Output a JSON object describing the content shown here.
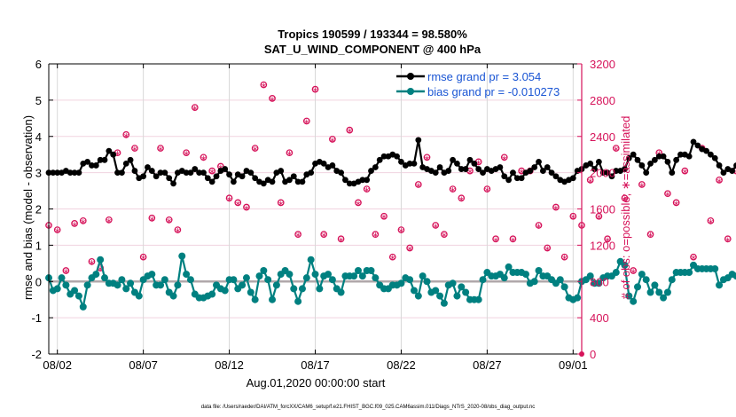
{
  "chart_data": {
    "type": "line",
    "title": "Tropics 190599 / 193344 = 98.580%",
    "subtitle": "SAT_U_WIND_COMPONENT @ 400 hPa",
    "xlabel": "Aug.01,2020 00:00:00 start",
    "ylabel": "rmse and bias (model - observation)",
    "ylabel_right": "# of obs: o=possible; ∗=assimilated",
    "footer": "data file: /Users/raeder/DAI/ATM_forcXX/CAM6_setup/f.e21.FHIST_BGC.f09_025.CAM6assim.011/Diags_NTrS_2020-08/obs_diag_output.nc",
    "xlim_days": [
      0.5,
      31.5
    ],
    "x_ticks": [
      {
        "day": 1,
        "label": "08/02"
      },
      {
        "day": 6,
        "label": "08/07"
      },
      {
        "day": 11,
        "label": "08/12"
      },
      {
        "day": 16,
        "label": "08/17"
      },
      {
        "day": 21,
        "label": "08/22"
      },
      {
        "day": 26,
        "label": "08/27"
      },
      {
        "day": 31,
        "label": "09/01"
      }
    ],
    "ylim": [
      -2,
      6
    ],
    "y_ticks": [
      -2,
      -1,
      0,
      1,
      2,
      3,
      4,
      5,
      6
    ],
    "ylim_right": [
      0,
      3200
    ],
    "y_ticks_right": [
      0,
      400,
      800,
      1200,
      1600,
      2000,
      2400,
      2800,
      3200
    ],
    "grid": true,
    "legend_position": "top-right",
    "colors": {
      "rmse": "#000000",
      "bias": "#008080",
      "obs": "#d6135a",
      "legend_text": "#1a55d4",
      "zero_line": "#b0a8aa"
    },
    "series": [
      {
        "name": "rmse grand pr = 3.054",
        "key": "rmse",
        "x_start_day": 0.5,
        "step_days": 0.25,
        "values": [
          3.0,
          3.0,
          3.0,
          3.0,
          3.05,
          3.0,
          3.0,
          3.0,
          3.25,
          3.3,
          3.2,
          3.2,
          3.35,
          3.35,
          3.6,
          3.5,
          3.0,
          3.0,
          3.25,
          3.35,
          3.05,
          2.85,
          2.9,
          3.15,
          3.05,
          2.9,
          3.0,
          3.0,
          2.85,
          2.7,
          3.0,
          3.05,
          3.0,
          3.0,
          3.1,
          3.0,
          3.0,
          2.85,
          2.75,
          2.9,
          3.05,
          3.1,
          2.95,
          2.75,
          2.95,
          2.9,
          3.05,
          3.0,
          2.85,
          2.75,
          2.7,
          2.8,
          2.75,
          3.0,
          3.05,
          2.75,
          2.8,
          2.9,
          2.75,
          2.75,
          2.95,
          3.0,
          3.25,
          3.3,
          3.25,
          3.15,
          3.2,
          3.05,
          3.0,
          2.8,
          2.7,
          2.7,
          2.75,
          2.8,
          2.8,
          3.05,
          3.15,
          3.35,
          3.45,
          3.45,
          3.5,
          3.45,
          3.3,
          3.2,
          3.25,
          3.25,
          3.9,
          3.15,
          3.1,
          3.05,
          3.0,
          3.15,
          3.0,
          3.05,
          3.35,
          3.25,
          3.1,
          3.1,
          3.35,
          3.25,
          3.1,
          3.0,
          3.1,
          3.05,
          3.1,
          3.15,
          2.9,
          2.8,
          3.0,
          2.85,
          2.85,
          3.0,
          3.05,
          3.15,
          3.3,
          3.05,
          3.15,
          3.0,
          2.9,
          2.8,
          2.75,
          2.8,
          2.85,
          3.05,
          3.1,
          3.2,
          3.25,
          3.1,
          3.3,
          3.0,
          3.0,
          2.9,
          3.05,
          3.05,
          3.1,
          3.4,
          3.5,
          3.35,
          3.2,
          3.0,
          3.25,
          3.35,
          3.45,
          3.45,
          3.3,
          3.0,
          3.35,
          3.5,
          3.5,
          3.45,
          3.85,
          3.75,
          3.65,
          3.6,
          3.5,
          3.4,
          3.2,
          3.0,
          3.1,
          3.05,
          3.2,
          3.15,
          3.1,
          3.2,
          3.3,
          3.45,
          3.2,
          3.45,
          3.15,
          3.0,
          2.85,
          2.95,
          3.1
        ]
      },
      {
        "name": "bias grand pr = -0.010273",
        "key": "bias",
        "x_start_day": 0.5,
        "step_days": 0.25,
        "values": [
          0.1,
          -0.25,
          -0.2,
          0.1,
          -0.1,
          -0.35,
          -0.25,
          -0.4,
          -0.7,
          -0.1,
          0.1,
          0.2,
          0.6,
          0.1,
          -0.05,
          -0.05,
          -0.1,
          0.05,
          -0.2,
          -0.05,
          -0.3,
          -0.4,
          0.05,
          0.15,
          0.2,
          -0.1,
          -0.1,
          0.05,
          -0.3,
          -0.4,
          -0.1,
          0.7,
          0.2,
          0.05,
          -0.35,
          -0.45,
          -0.45,
          -0.4,
          -0.35,
          -0.1,
          -0.2,
          -0.25,
          0.05,
          0.05,
          -0.2,
          -0.1,
          0.1,
          -0.3,
          -0.5,
          0.15,
          0.3,
          0.05,
          -0.5,
          -0.1,
          0.2,
          0.3,
          0.2,
          -0.2,
          -0.55,
          -0.2,
          0.1,
          0.6,
          0.2,
          -0.2,
          0.15,
          0.2,
          0.05,
          -0.2,
          -0.3,
          0.15,
          0.15,
          0.15,
          0.3,
          0.15,
          0.3,
          0.3,
          0.1,
          -0.1,
          -0.2,
          -0.2,
          -0.1,
          -0.1,
          -0.05,
          0.1,
          0.05,
          -0.25,
          -0.4,
          0.15,
          0.0,
          -0.3,
          -0.25,
          -0.4,
          -0.6,
          -0.1,
          -0.05,
          -0.4,
          -0.15,
          -0.3,
          -0.5,
          -0.5,
          -0.5,
          0.05,
          0.25,
          0.15,
          0.15,
          0.2,
          0.1,
          0.4,
          0.25,
          0.25,
          0.25,
          0.2,
          -0.05,
          0.0,
          0.3,
          0.15,
          0.15,
          0.05,
          -0.05,
          0.05,
          -0.15,
          -0.45,
          -0.5,
          -0.45,
          0.0,
          0.05,
          0.15,
          -0.05,
          -0.05,
          0.1,
          0.15,
          0.15,
          0.25,
          0.55,
          0.45,
          -0.4,
          -0.55,
          -0.15,
          0.2,
          0.05,
          -0.3,
          -0.1,
          -0.3,
          -0.45,
          -0.3,
          0.05,
          0.25,
          0.25,
          0.25,
          0.25,
          0.45,
          0.35,
          0.35,
          0.35,
          0.35,
          0.35,
          -0.1,
          0.05,
          0.1,
          0.2,
          0.15,
          -0.2,
          0.05,
          0.25,
          0.2,
          0.1,
          0.8,
          0.75,
          0.35,
          0.2,
          0.15,
          0.5
        ]
      },
      {
        "name": "obs possible (o) / assimilated (*)",
        "key": "obs",
        "axis": "right",
        "x_start_day": 0.5,
        "step_days": 0.5,
        "values": [
          1400,
          1350,
          900,
          1420,
          1450,
          1000,
          930,
          1460,
          2200,
          2400,
          2250,
          1050,
          1480,
          2250,
          1460,
          1350,
          2200,
          2700,
          2150,
          2000,
          2050,
          1700,
          1650,
          1600,
          2250,
          2950,
          2800,
          1650,
          2200,
          1300,
          2550,
          2900,
          1300,
          2350,
          1250,
          2450,
          1650,
          1800,
          1300,
          1500,
          1050,
          1350,
          1150,
          1850,
          2150,
          1400,
          1300,
          1800,
          1700,
          2000,
          2100,
          1800,
          1250,
          2150,
          1250,
          2000,
          2000,
          1400,
          1150,
          1600,
          1050,
          1500,
          1400,
          1900,
          1500,
          1250,
          2250,
          1700,
          900,
          1850,
          1300,
          2200,
          1750,
          1650,
          2000,
          1050,
          2250,
          1450,
          1900,
          1250,
          2000,
          1950,
          1100,
          1950,
          1800,
          1200
        ]
      }
    ]
  }
}
